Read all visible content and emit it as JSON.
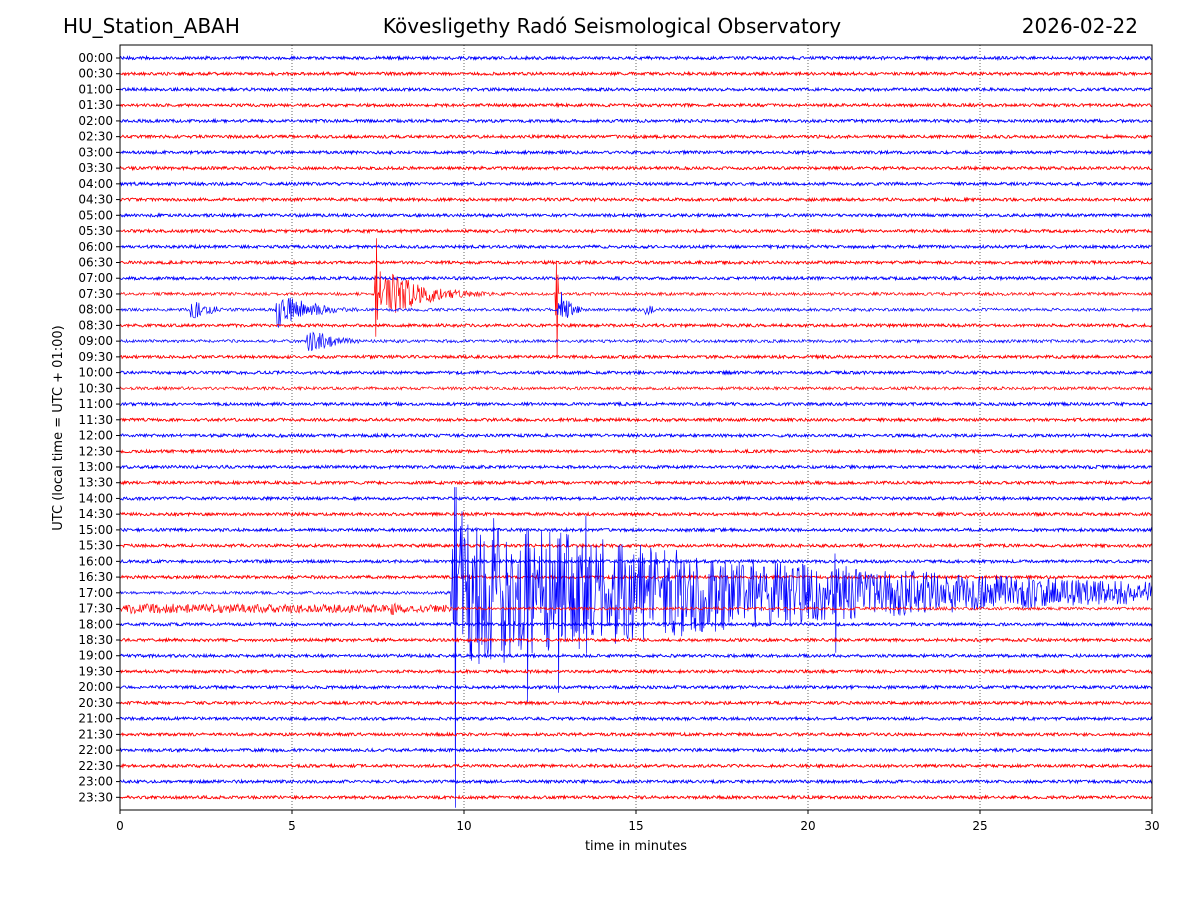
{
  "header": {
    "station": "HU_Station_ABAH",
    "observatory": "Kövesligethy Radó Seismological Observatory",
    "date": "2026-02-22"
  },
  "chart_data": {
    "type": "line",
    "title": "Kövesligethy Radó Seismological Observatory",
    "xlabel": "time in minutes",
    "ylabel": "UTC (local time = UTC + 01:00)",
    "xlim": [
      0,
      30
    ],
    "xticks": [
      0,
      5,
      10,
      15,
      20,
      25,
      30
    ],
    "grid": "vertical dotted lines at x ticks",
    "line_colors": [
      "#0000ff",
      "#ff0000"
    ],
    "rows": [
      "00:00",
      "00:30",
      "01:00",
      "01:30",
      "02:00",
      "02:30",
      "03:00",
      "03:30",
      "04:00",
      "04:30",
      "05:00",
      "05:30",
      "06:00",
      "06:30",
      "07:00",
      "07:30",
      "08:00",
      "08:30",
      "09:00",
      "09:30",
      "10:00",
      "10:30",
      "11:00",
      "11:30",
      "12:00",
      "12:30",
      "13:00",
      "13:30",
      "14:00",
      "14:30",
      "15:00",
      "15:30",
      "16:00",
      "16:30",
      "17:00",
      "17:30",
      "18:00",
      "18:30",
      "19:00",
      "19:30",
      "20:00",
      "20:30",
      "21:00",
      "21:30",
      "22:00",
      "22:30",
      "23:00",
      "23:30"
    ],
    "noise_amplitude": 1.5,
    "events": [
      {
        "row": "07:30",
        "start": 7.4,
        "end": 11.5,
        "peak": 32,
        "decay": 1.2
      },
      {
        "row": "08:00",
        "start": 2.0,
        "end": 4.3,
        "peak": 13,
        "decay": 0.6
      },
      {
        "row": "08:00",
        "start": 4.5,
        "end": 8.5,
        "peak": 20,
        "decay": 1.0
      },
      {
        "row": "08:00",
        "start": 12.7,
        "end": 14.2,
        "peak": 28,
        "decay": 0.3
      },
      {
        "row": "08:00",
        "start": 15.2,
        "end": 16.5,
        "peak": 9,
        "decay": 0.3
      },
      {
        "row": "09:00",
        "start": 5.4,
        "end": 7.5,
        "peak": 14,
        "decay": 0.8
      },
      {
        "row": "10:30",
        "start": 23.0,
        "end": 23.6,
        "peak": 4,
        "decay": 0.3
      },
      {
        "row": "17:00",
        "start": 9.6,
        "end": 30.0,
        "peak": 85,
        "decay": 10.0
      },
      {
        "row": "17:30",
        "start": 0.0,
        "end": 9.6,
        "peak": 5,
        "decay": 30.0
      },
      {
        "row": "17:30",
        "start": 5.4,
        "end": 5.8,
        "peak": 8,
        "decay": 0.3
      },
      {
        "row": "17:30",
        "start": 7.8,
        "end": 8.6,
        "peak": 8,
        "decay": 0.5
      }
    ],
    "spikes": [
      {
        "row": "17:00",
        "x": 9.75,
        "up": 185,
        "down": 215
      },
      {
        "row": "17:00",
        "x": 11.85,
        "up": 110,
        "down": 110
      },
      {
        "row": "17:00",
        "x": 12.75,
        "up": 95,
        "down": 100
      },
      {
        "row": "17:00",
        "x": 13.55,
        "up": 90,
        "down": 85
      },
      {
        "row": "17:00",
        "x": 20.8,
        "up": 55,
        "down": 70
      },
      {
        "row": "07:30",
        "x": 7.45,
        "up": 65,
        "down": 60
      },
      {
        "row": "07:30",
        "x": 12.7,
        "up": 45,
        "down": 75
      }
    ]
  }
}
